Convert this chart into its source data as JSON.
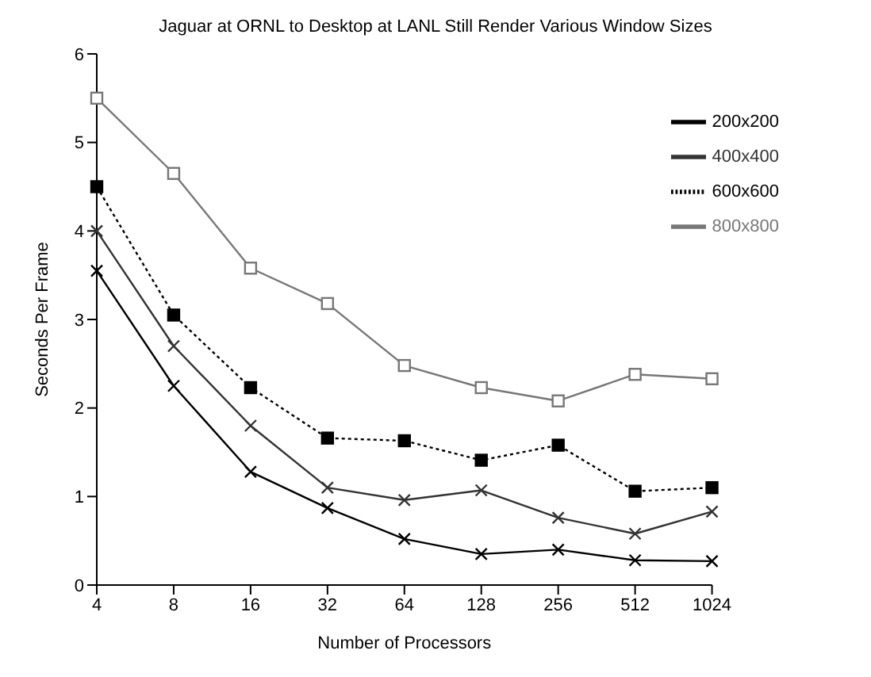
{
  "chart_data": {
    "type": "line",
    "title": "Jaguar at ORNL to Desktop at LANL Still Render Various Window Sizes",
    "xlabel": "Number of Processors",
    "ylabel": "Seconds Per Frame",
    "categories": [
      "4",
      "8",
      "16",
      "32",
      "64",
      "128",
      "256",
      "512",
      "1024"
    ],
    "series": [
      {
        "name": "200x200",
        "color": "#000000",
        "marker": "cross",
        "line_style": "solid",
        "values": [
          3.55,
          2.25,
          1.28,
          0.87,
          0.52,
          0.35,
          0.4,
          0.28,
          0.27
        ]
      },
      {
        "name": "400x400",
        "color": "#333333",
        "marker": "cross",
        "line_style": "solid",
        "values": [
          4.0,
          2.7,
          1.8,
          1.1,
          0.96,
          1.07,
          0.76,
          0.58,
          0.83
        ]
      },
      {
        "name": "600x600",
        "color": "#000000",
        "marker": "square",
        "line_style": "dotted",
        "values": [
          4.5,
          3.05,
          2.23,
          1.66,
          1.63,
          1.41,
          1.58,
          1.06,
          1.1
        ]
      },
      {
        "name": "800x800",
        "color": "#777777",
        "marker": "square",
        "line_style": "solid",
        "values": [
          5.5,
          4.65,
          3.58,
          3.18,
          2.48,
          2.23,
          2.08,
          2.38,
          2.33
        ]
      }
    ],
    "ylim": [
      0,
      6
    ],
    "yticks": [
      0,
      1,
      2,
      3,
      4,
      5,
      6
    ],
    "grid": false,
    "legend": "top right"
  }
}
